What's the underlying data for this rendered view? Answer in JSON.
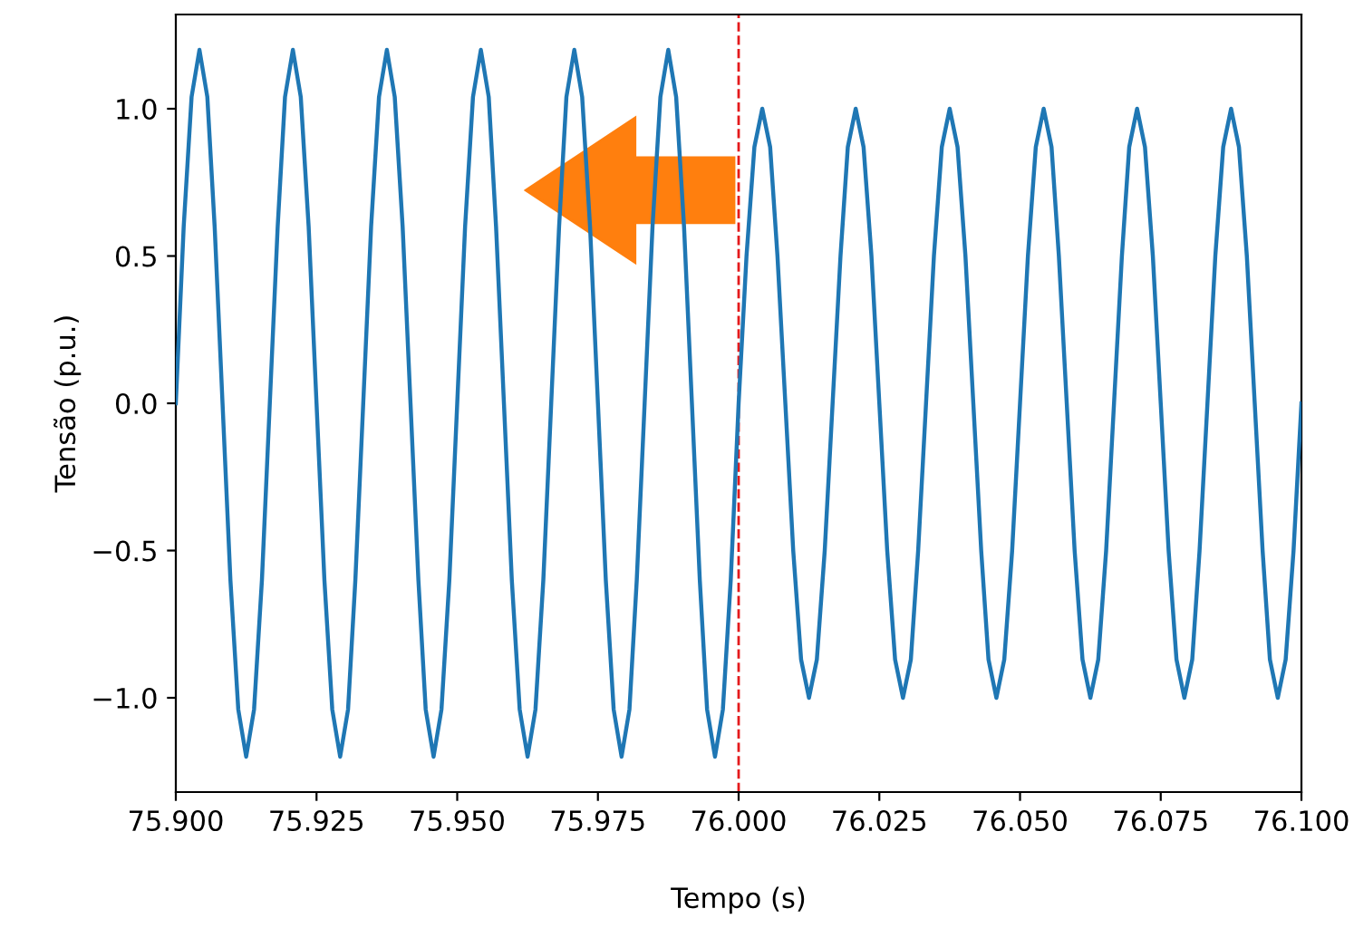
{
  "chart_data": {
    "type": "line",
    "xlabel": "Tempo (s)",
    "ylabel": "Tensão (p.u.)",
    "x": [
      75.9,
      75.9014,
      75.9028,
      75.9042,
      75.9056,
      75.9069,
      75.9083,
      75.9097,
      75.9111,
      75.9125,
      75.9139,
      75.9153,
      75.9167,
      75.9181,
      75.9194,
      75.9208,
      75.9222,
      75.9236,
      75.925,
      75.9264,
      75.9278,
      75.9292,
      75.9306,
      75.9319,
      75.9333,
      75.9347,
      75.9361,
      75.9375,
      75.9389,
      75.9403,
      75.9417,
      75.9431,
      75.9444,
      75.9458,
      75.9472,
      75.9486,
      75.95,
      75.9514,
      75.9528,
      75.9542,
      75.9556,
      75.9569,
      75.9583,
      75.9597,
      75.9611,
      75.9625,
      75.9639,
      75.9653,
      75.9667,
      75.9681,
      75.9694,
      75.9708,
      75.9722,
      75.9736,
      75.975,
      75.9764,
      75.9778,
      75.9792,
      75.9806,
      75.9819,
      75.9833,
      75.9847,
      75.9861,
      75.9875,
      75.9889,
      75.9903,
      75.9917,
      75.9931,
      75.9944,
      75.9958,
      75.9972,
      75.9986,
      76.0,
      76.0014,
      76.0028,
      76.0042,
      76.0056,
      76.0069,
      76.0083,
      76.0097,
      76.0111,
      76.0125,
      76.0139,
      76.0153,
      76.0167,
      76.0181,
      76.0194,
      76.0208,
      76.0222,
      76.0236,
      76.025,
      76.0264,
      76.0278,
      76.0292,
      76.0306,
      76.0319,
      76.0333,
      76.0347,
      76.0361,
      76.0375,
      76.0389,
      76.0403,
      76.0417,
      76.0431,
      76.0444,
      76.0458,
      76.0472,
      76.0486,
      76.05,
      76.0514,
      76.0528,
      76.0542,
      76.0556,
      76.0569,
      76.0583,
      76.0597,
      76.0611,
      76.0625,
      76.0639,
      76.0653,
      76.0667,
      76.0681,
      76.0694,
      76.0708,
      76.0722,
      76.0736,
      76.075,
      76.0764,
      76.0778,
      76.0792,
      76.0806,
      76.0819,
      76.0833,
      76.0847,
      76.0861,
      76.0875,
      76.0889,
      76.0903,
      76.0917,
      76.0931,
      76.0944,
      76.0958,
      76.0972,
      76.0986,
      76.1
    ],
    "series": [
      {
        "color": "#1f77b4",
        "values": [
          0,
          0.6,
          1.04,
          1.2,
          1.04,
          0.6,
          0,
          -0.6,
          -1.04,
          -1.2,
          -1.04,
          -0.6,
          0,
          0.6,
          1.04,
          1.2,
          1.04,
          0.6,
          0,
          -0.6,
          -1.04,
          -1.2,
          -1.04,
          -0.6,
          0,
          0.6,
          1.04,
          1.2,
          1.04,
          0.6,
          0,
          -0.6,
          -1.04,
          -1.2,
          -1.04,
          -0.6,
          0,
          0.6,
          1.04,
          1.2,
          1.04,
          0.6,
          0,
          -0.6,
          -1.04,
          -1.2,
          -1.04,
          -0.6,
          0,
          0.6,
          1.04,
          1.2,
          1.04,
          0.6,
          0,
          -0.6,
          -1.04,
          -1.2,
          -1.04,
          -0.6,
          0,
          0.6,
          1.04,
          1.2,
          1.04,
          0.6,
          0,
          -0.6,
          -1.04,
          -1.2,
          -1.04,
          -0.6,
          0,
          0.5,
          0.87,
          1,
          0.87,
          0.5,
          0,
          -0.5,
          -0.87,
          -1,
          -0.87,
          -0.5,
          0,
          0.5,
          0.87,
          1,
          0.87,
          0.5,
          0,
          -0.5,
          -0.87,
          -1,
          -0.87,
          -0.5,
          0,
          0.5,
          0.87,
          1,
          0.87,
          0.5,
          0,
          -0.5,
          -0.87,
          -1,
          -0.87,
          -0.5,
          0,
          0.5,
          0.87,
          1,
          0.87,
          0.5,
          0,
          -0.5,
          -0.87,
          -1,
          -0.87,
          -0.5,
          0,
          0.5,
          0.87,
          1,
          0.87,
          0.5,
          0,
          -0.5,
          -0.87,
          -1,
          -0.87,
          -0.5,
          0,
          0.5,
          0.87,
          1,
          0.87,
          0.5,
          0,
          -0.5,
          -0.87,
          -1,
          -0.87,
          -0.5,
          0
        ]
      }
    ],
    "xlim": [
      75.9,
      76.1
    ],
    "xticks": [
      {
        "value": 75.9,
        "label": "75.900"
      },
      {
        "value": 75.925,
        "label": "75.925"
      },
      {
        "value": 75.95,
        "label": "75.950"
      },
      {
        "value": 75.975,
        "label": "75.975"
      },
      {
        "value": 76.0,
        "label": "76.000"
      },
      {
        "value": 76.025,
        "label": "76.025"
      },
      {
        "value": 76.05,
        "label": "76.050"
      },
      {
        "value": 76.075,
        "label": "76.075"
      },
      {
        "value": 76.1,
        "label": "76.100"
      }
    ],
    "ylim": [
      -1.32,
      1.32
    ],
    "yticks": [
      {
        "value": -1,
        "label": "−1.0"
      },
      {
        "value": -0.5,
        "label": "−0.5"
      },
      {
        "value": 0,
        "label": "0.0"
      },
      {
        "value": 0.5,
        "label": "0.5"
      },
      {
        "value": 1,
        "label": "1.0"
      }
    ],
    "ref_lines": [
      {
        "axis": "x",
        "value": 76.0,
        "color": "#e41a1c",
        "line_style": "dashed"
      }
    ],
    "line_style": "solid",
    "grid": false
  }
}
